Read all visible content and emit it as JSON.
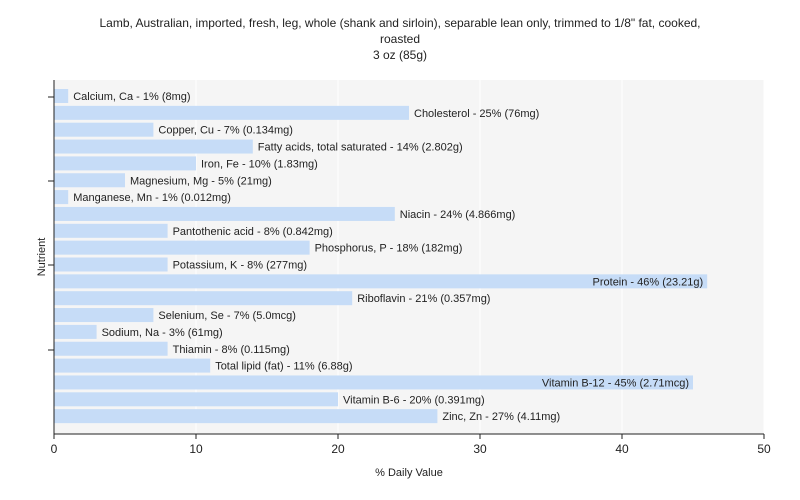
{
  "title_lines": [
    "Lamb, Australian, imported, fresh, leg, whole (shank and sirloin), separable lean only, trimmed to 1/8\" fat, cooked,",
    "roasted",
    "3 oz (85g)"
  ],
  "chart_data": {
    "type": "bar",
    "orientation": "horizontal",
    "xlabel": "% Daily Value",
    "ylabel": "Nutrient",
    "xlim": [
      0,
      50
    ],
    "xticks": [
      0,
      10,
      20,
      30,
      40,
      50
    ],
    "grid": true,
    "bar_color": "#c6dcf7",
    "categories": [
      "Calcium, Ca",
      "Cholesterol",
      "Copper, Cu",
      "Fatty acids, total saturated",
      "Iron, Fe",
      "Magnesium, Mg",
      "Manganese, Mn",
      "Niacin",
      "Pantothenic acid",
      "Phosphorus, P",
      "Potassium, K",
      "Protein",
      "Riboflavin",
      "Selenium, Se",
      "Sodium, Na",
      "Thiamin",
      "Total lipid (fat)",
      "Vitamin B-12",
      "Vitamin B-6",
      "Zinc, Zn"
    ],
    "values": [
      1,
      25,
      7,
      14,
      10,
      5,
      1,
      24,
      8,
      18,
      8,
      46,
      21,
      7,
      3,
      8,
      11,
      45,
      20,
      27
    ],
    "labels": [
      "Calcium, Ca - 1% (8mg)",
      "Cholesterol - 25% (76mg)",
      "Copper, Cu - 7% (0.134mg)",
      "Fatty acids, total saturated - 14% (2.802g)",
      "Iron, Fe - 10% (1.83mg)",
      "Magnesium, Mg - 5% (21mg)",
      "Manganese, Mn - 1% (0.012mg)",
      "Niacin - 24% (4.866mg)",
      "Pantothenic acid - 8% (0.842mg)",
      "Phosphorus, P - 18% (182mg)",
      "Potassium, K - 8% (277mg)",
      "Protein - 46% (23.21g)",
      "Riboflavin - 21% (0.357mg)",
      "Selenium, Se - 7% (5.0mcg)",
      "Sodium, Na - 3% (61mg)",
      "Thiamin - 8% (0.115mg)",
      "Total lipid (fat) - 11% (6.88g)",
      "Vitamin B-12 - 45% (2.71mcg)",
      "Vitamin B-6 - 20% (0.391mg)",
      "Zinc, Zn - 27% (4.11mg)"
    ]
  }
}
